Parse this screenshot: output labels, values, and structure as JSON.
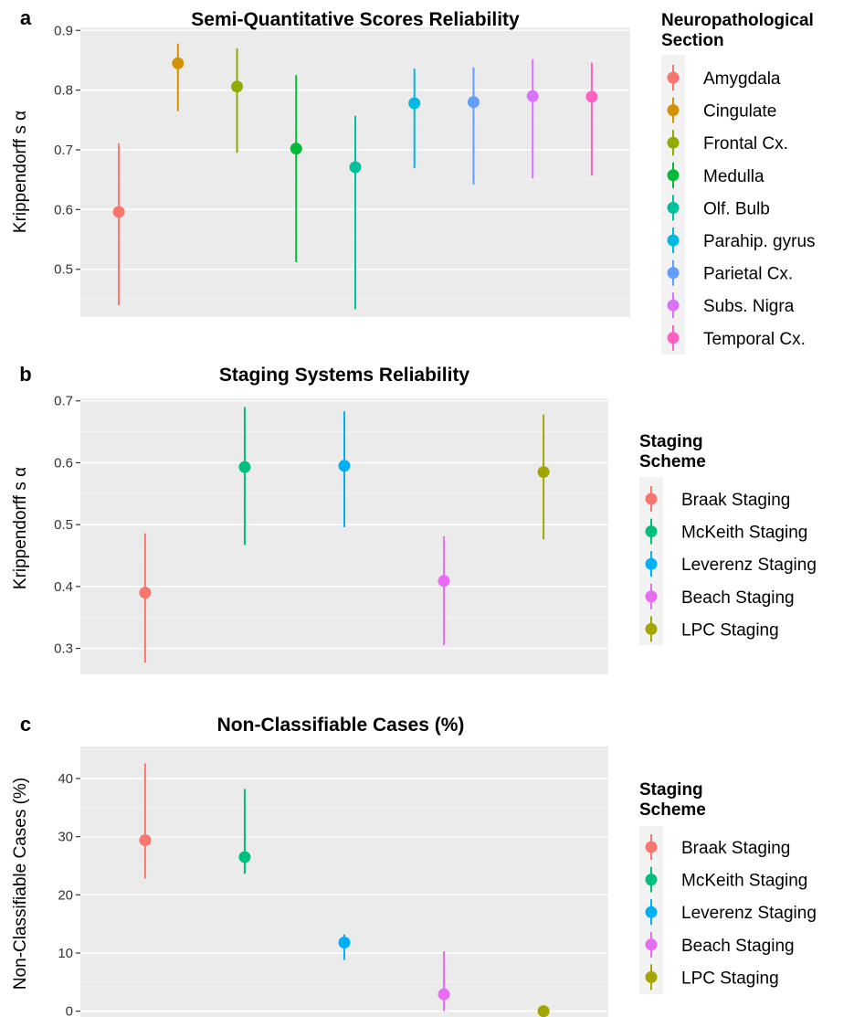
{
  "chart_data": [
    {
      "panel": "a",
      "type": "scatter",
      "title": "Semi-Quantitative Scores Reliability",
      "ylabel": "Krippendorff s α",
      "ylim": [
        0.42,
        0.905
      ],
      "yticks": [
        0.5,
        0.6,
        0.7,
        0.8,
        0.9
      ],
      "ytick_labels": [
        "0.5",
        "0.6",
        "0.7",
        "0.8",
        "0.9"
      ],
      "legend_title": [
        "Neuropathological",
        "Section"
      ],
      "legend_position": "right",
      "series": [
        {
          "name": "Amygdala",
          "value": 0.596,
          "low": 0.44,
          "high": 0.711,
          "color": "#F8766D"
        },
        {
          "name": "Cingulate",
          "value": 0.845,
          "low": 0.765,
          "high": 0.878,
          "color": "#D39200"
        },
        {
          "name": "Frontal Cx.",
          "value": 0.806,
          "low": 0.695,
          "high": 0.87,
          "color": "#93AA00"
        },
        {
          "name": "Medulla",
          "value": 0.702,
          "low": 0.512,
          "high": 0.825,
          "color": "#00BA38"
        },
        {
          "name": "Olf. Bulb",
          "value": 0.671,
          "low": 0.433,
          "high": 0.757,
          "color": "#00C19F"
        },
        {
          "name": "Parahip. gyrus",
          "value": 0.778,
          "low": 0.669,
          "high": 0.836,
          "color": "#00B9E3"
        },
        {
          "name": "Parietal Cx.",
          "value": 0.78,
          "low": 0.642,
          "high": 0.838,
          "color": "#619CFF"
        },
        {
          "name": "Subs. Nigra",
          "value": 0.79,
          "low": 0.652,
          "high": 0.852,
          "color": "#DB72FB"
        },
        {
          "name": "Temporal Cx.",
          "value": 0.789,
          "low": 0.657,
          "high": 0.846,
          "color": "#FF61C3"
        }
      ]
    },
    {
      "panel": "b",
      "type": "scatter",
      "title": "Staging Systems Reliability",
      "ylabel": "Krippendorff s α",
      "ylim": [
        0.258,
        0.704
      ],
      "yticks": [
        0.3,
        0.4,
        0.5,
        0.6,
        0.7
      ],
      "ytick_labels": [
        "0.3",
        "0.4",
        "0.5",
        "0.6",
        "0.7"
      ],
      "legend_title": [
        "Staging",
        "Scheme"
      ],
      "legend_position": "right",
      "series": [
        {
          "name": "Braak Staging",
          "value": 0.39,
          "low": 0.277,
          "high": 0.486,
          "color": "#F8766D"
        },
        {
          "name": "McKeith Staging",
          "value": 0.593,
          "low": 0.467,
          "high": 0.69,
          "color": "#00BF7D"
        },
        {
          "name": "Leverenz Staging",
          "value": 0.595,
          "low": 0.496,
          "high": 0.683,
          "color": "#00B0F6"
        },
        {
          "name": "Beach Staging",
          "value": 0.409,
          "low": 0.305,
          "high": 0.481,
          "color": "#E76BF3"
        },
        {
          "name": "LPC Staging",
          "value": 0.585,
          "low": 0.476,
          "high": 0.678,
          "color": "#A3A500"
        }
      ]
    },
    {
      "panel": "c",
      "type": "scatter",
      "title": "Non-Classifiable Cases (%)",
      "ylabel": "Non-Classifiable Cases (%)",
      "ylim": [
        -1,
        45.5
      ],
      "yticks": [
        0,
        10,
        20,
        30,
        40
      ],
      "ytick_labels": [
        "0",
        "10",
        "20",
        "30",
        "40"
      ],
      "legend_title": [
        "Staging",
        "Scheme"
      ],
      "legend_position": "right",
      "series": [
        {
          "name": "Braak Staging",
          "value": 29.4,
          "low": 22.8,
          "high": 42.6,
          "color": "#F8766D"
        },
        {
          "name": "McKeith Staging",
          "value": 26.5,
          "low": 23.6,
          "high": 38.2,
          "color": "#00BF7D"
        },
        {
          "name": "Leverenz Staging",
          "value": 11.8,
          "low": 8.8,
          "high": 13.2,
          "color": "#00B0F6"
        },
        {
          "name": "Beach Staging",
          "value": 2.9,
          "low": 0,
          "high": 10.3,
          "color": "#E76BF3"
        },
        {
          "name": "LPC Staging",
          "value": 0,
          "low": 0,
          "high": 0.4,
          "color": "#A3A500"
        }
      ]
    }
  ]
}
